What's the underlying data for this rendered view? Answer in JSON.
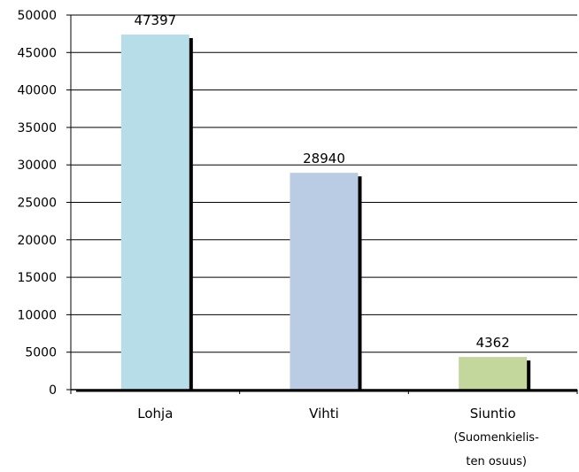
{
  "chart_data": {
    "type": "bar",
    "categories": [
      "Lohja",
      "Vihti",
      "Siuntio"
    ],
    "category_notes": [
      "",
      "",
      "(Suomenkielis-\nten osuus)"
    ],
    "values": [
      47397,
      28940,
      4362
    ],
    "data_labels": [
      "47397",
      "28940",
      "4362"
    ],
    "bar_colors": [
      "#b7dde8",
      "#b9cce4",
      "#c3d69b"
    ],
    "ylim": [
      0,
      50000
    ],
    "y_ticks": [
      0,
      5000,
      10000,
      15000,
      20000,
      25000,
      30000,
      35000,
      40000,
      45000,
      50000
    ],
    "grid": true,
    "legend": "none",
    "title": "",
    "xlabel": "",
    "ylabel": ""
  }
}
